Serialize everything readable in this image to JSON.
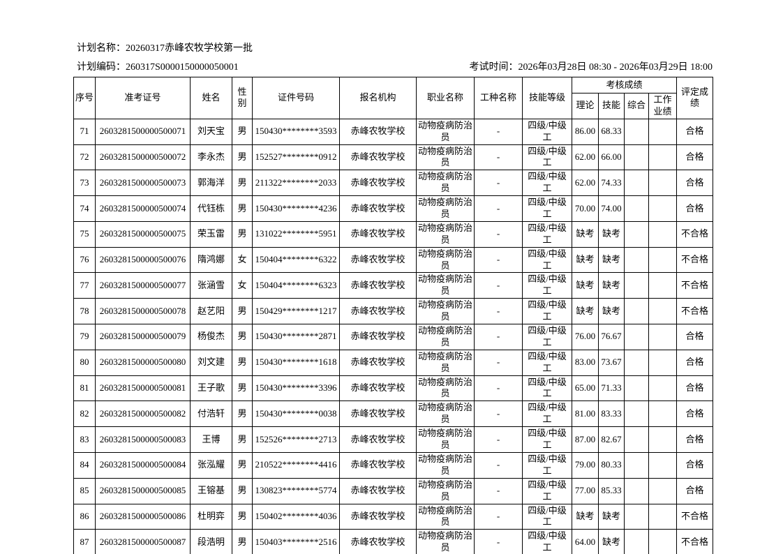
{
  "page": {
    "plan_name_label": "计划名称：",
    "plan_name_value": "20260317赤峰农牧学校第一批",
    "plan_code_label": "计划编码：",
    "plan_code_value": "260317S0000150000050001",
    "exam_time_label": "考试时间：",
    "exam_time_value": "2026年03月28日 08:30 - 2026年03月29日 18:00"
  },
  "table": {
    "headers": {
      "seq": "序号",
      "ticket": "准考证号",
      "name": "姓名",
      "gender": "性别",
      "id_number": "证件号码",
      "org": "报名机构",
      "occupation": "职业名称",
      "job_type": "工种名称",
      "skill_level": "技能等级",
      "score_group": "考核成绩",
      "theory": "理论",
      "skill": "技能",
      "comprehensive": "综合",
      "work": "工作业绩",
      "result": "评定成绩"
    },
    "row_fields": [
      "seq",
      "ticket",
      "name",
      "gender",
      "id_number",
      "org",
      "occupation",
      "job_type",
      "skill_level",
      "theory",
      "skill",
      "comprehensive",
      "work",
      "result"
    ],
    "rows": [
      {
        "seq": "71",
        "ticket": "2603281500000500071",
        "name": "刘天宝",
        "gender": "男",
        "id_number": "150430********3593",
        "org": "赤峰农牧学校",
        "occupation": "动物疫病防治员",
        "job_type": "-",
        "skill_level": "四级/中级工",
        "theory": "86.00",
        "skill": "68.33",
        "comprehensive": "",
        "work": "",
        "result": "合格"
      },
      {
        "seq": "72",
        "ticket": "2603281500000500072",
        "name": "李永杰",
        "gender": "男",
        "id_number": "152527********0912",
        "org": "赤峰农牧学校",
        "occupation": "动物疫病防治员",
        "job_type": "-",
        "skill_level": "四级/中级工",
        "theory": "62.00",
        "skill": "66.00",
        "comprehensive": "",
        "work": "",
        "result": "合格"
      },
      {
        "seq": "73",
        "ticket": "2603281500000500073",
        "name": "郭海洋",
        "gender": "男",
        "id_number": "211322********2033",
        "org": "赤峰农牧学校",
        "occupation": "动物疫病防治员",
        "job_type": "-",
        "skill_level": "四级/中级工",
        "theory": "62.00",
        "skill": "74.33",
        "comprehensive": "",
        "work": "",
        "result": "合格"
      },
      {
        "seq": "74",
        "ticket": "2603281500000500074",
        "name": "代钰栋",
        "gender": "男",
        "id_number": "150430********4236",
        "org": "赤峰农牧学校",
        "occupation": "动物疫病防治员",
        "job_type": "-",
        "skill_level": "四级/中级工",
        "theory": "70.00",
        "skill": "74.00",
        "comprehensive": "",
        "work": "",
        "result": "合格"
      },
      {
        "seq": "75",
        "ticket": "2603281500000500075",
        "name": "荣玉雷",
        "gender": "男",
        "id_number": "131022********5951",
        "org": "赤峰农牧学校",
        "occupation": "动物疫病防治员",
        "job_type": "-",
        "skill_level": "四级/中级工",
        "theory": "缺考",
        "skill": "缺考",
        "comprehensive": "",
        "work": "",
        "result": "不合格"
      },
      {
        "seq": "76",
        "ticket": "2603281500000500076",
        "name": "隋鸿娜",
        "gender": "女",
        "id_number": "150404********6322",
        "org": "赤峰农牧学校",
        "occupation": "动物疫病防治员",
        "job_type": "-",
        "skill_level": "四级/中级工",
        "theory": "缺考",
        "skill": "缺考",
        "comprehensive": "",
        "work": "",
        "result": "不合格"
      },
      {
        "seq": "77",
        "ticket": "2603281500000500077",
        "name": "张涵雪",
        "gender": "女",
        "id_number": "150404********6323",
        "org": "赤峰农牧学校",
        "occupation": "动物疫病防治员",
        "job_type": "-",
        "skill_level": "四级/中级工",
        "theory": "缺考",
        "skill": "缺考",
        "comprehensive": "",
        "work": "",
        "result": "不合格"
      },
      {
        "seq": "78",
        "ticket": "2603281500000500078",
        "name": "赵艺阳",
        "gender": "男",
        "id_number": "150429********1217",
        "org": "赤峰农牧学校",
        "occupation": "动物疫病防治员",
        "job_type": "-",
        "skill_level": "四级/中级工",
        "theory": "缺考",
        "skill": "缺考",
        "comprehensive": "",
        "work": "",
        "result": "不合格"
      },
      {
        "seq": "79",
        "ticket": "2603281500000500079",
        "name": "杨俊杰",
        "gender": "男",
        "id_number": "150430********2871",
        "org": "赤峰农牧学校",
        "occupation": "动物疫病防治员",
        "job_type": "-",
        "skill_level": "四级/中级工",
        "theory": "76.00",
        "skill": "76.67",
        "comprehensive": "",
        "work": "",
        "result": "合格"
      },
      {
        "seq": "80",
        "ticket": "2603281500000500080",
        "name": "刘文建",
        "gender": "男",
        "id_number": "150430********1618",
        "org": "赤峰农牧学校",
        "occupation": "动物疫病防治员",
        "job_type": "-",
        "skill_level": "四级/中级工",
        "theory": "83.00",
        "skill": "73.67",
        "comprehensive": "",
        "work": "",
        "result": "合格"
      },
      {
        "seq": "81",
        "ticket": "2603281500000500081",
        "name": "王子歌",
        "gender": "男",
        "id_number": "150430********3396",
        "org": "赤峰农牧学校",
        "occupation": "动物疫病防治员",
        "job_type": "-",
        "skill_level": "四级/中级工",
        "theory": "65.00",
        "skill": "71.33",
        "comprehensive": "",
        "work": "",
        "result": "合格"
      },
      {
        "seq": "82",
        "ticket": "2603281500000500082",
        "name": "付浩轩",
        "gender": "男",
        "id_number": "150430********0038",
        "org": "赤峰农牧学校",
        "occupation": "动物疫病防治员",
        "job_type": "-",
        "skill_level": "四级/中级工",
        "theory": "81.00",
        "skill": "83.33",
        "comprehensive": "",
        "work": "",
        "result": "合格"
      },
      {
        "seq": "83",
        "ticket": "2603281500000500083",
        "name": "王博",
        "gender": "男",
        "id_number": "152526********2713",
        "org": "赤峰农牧学校",
        "occupation": "动物疫病防治员",
        "job_type": "-",
        "skill_level": "四级/中级工",
        "theory": "87.00",
        "skill": "82.67",
        "comprehensive": "",
        "work": "",
        "result": "合格"
      },
      {
        "seq": "84",
        "ticket": "2603281500000500084",
        "name": "张泓耀",
        "gender": "男",
        "id_number": "210522********4416",
        "org": "赤峰农牧学校",
        "occupation": "动物疫病防治员",
        "job_type": "-",
        "skill_level": "四级/中级工",
        "theory": "79.00",
        "skill": "80.33",
        "comprehensive": "",
        "work": "",
        "result": "合格"
      },
      {
        "seq": "85",
        "ticket": "2603281500000500085",
        "name": "王镕基",
        "gender": "男",
        "id_number": "130823********5774",
        "org": "赤峰农牧学校",
        "occupation": "动物疫病防治员",
        "job_type": "-",
        "skill_level": "四级/中级工",
        "theory": "77.00",
        "skill": "85.33",
        "comprehensive": "",
        "work": "",
        "result": "合格"
      },
      {
        "seq": "86",
        "ticket": "2603281500000500086",
        "name": "杜明弈",
        "gender": "男",
        "id_number": "150402********4036",
        "org": "赤峰农牧学校",
        "occupation": "动物疫病防治员",
        "job_type": "-",
        "skill_level": "四级/中级工",
        "theory": "缺考",
        "skill": "缺考",
        "comprehensive": "",
        "work": "",
        "result": "不合格"
      },
      {
        "seq": "87",
        "ticket": "2603281500000500087",
        "name": "段浩明",
        "gender": "男",
        "id_number": "150403********2516",
        "org": "赤峰农牧学校",
        "occupation": "动物疫病防治员",
        "job_type": "-",
        "skill_level": "四级/中级工",
        "theory": "64.00",
        "skill": "缺考",
        "comprehensive": "",
        "work": "",
        "result": "不合格"
      }
    ]
  }
}
